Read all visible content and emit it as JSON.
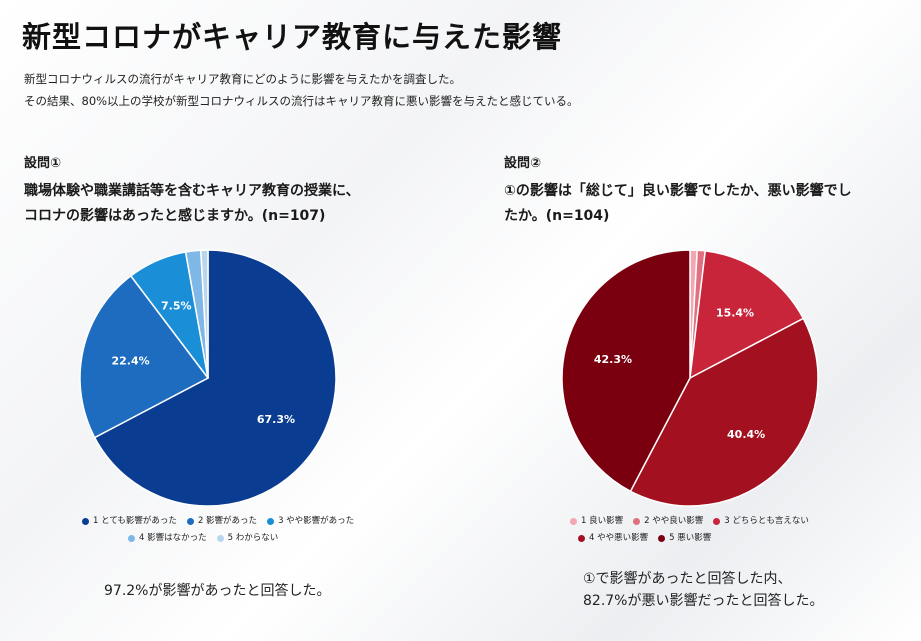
{
  "title": "新型コロナがキャリア教育に与えた影響",
  "intro": [
    "新型コロナウィルスの流行がキャリア教育にどのように影響を与えたかを調査した。",
    "その結果、80%以上の学校が新型コロナウィルスの流行はキャリア教育に悪い影響を与えたと感じている。"
  ],
  "q1": {
    "label": "設問①",
    "lines": [
      "職場体験や職業講話等を含むキャリア教育の授業に、",
      "コロナの影響はあったと感じますか。(n=107)"
    ],
    "summary": [
      "97.2%が影響があったと回答した。"
    ]
  },
  "q2": {
    "label": "設問②",
    "lines": [
      "①の影響は「総じて」良い影響でしたか、悪い影響でし",
      "たか。(n=104)"
    ],
    "summary": [
      "①で影響があったと回答した内、",
      "82.7%が悪い影響だったと回答した。"
    ]
  },
  "chart_data": [
    {
      "type": "pie",
      "title": "設問①",
      "categories": [
        "1 とても影響があった",
        "2 影響があった",
        "3 やや影響があった",
        "4 影響はなかった",
        "5 わからない"
      ],
      "values": [
        67.3,
        22.4,
        7.5,
        1.9,
        0.9
      ],
      "labels": [
        "67.3%",
        "22.4%",
        "7.5%",
        "",
        ""
      ],
      "colors": [
        "#0a3d91",
        "#1d6cc0",
        "#1a8fd8",
        "#7fb7e6",
        "#b9d6ef"
      ]
    },
    {
      "type": "pie",
      "title": "設問②",
      "categories": [
        "1 良い影響",
        "2 やや良い影響",
        "3 どちらとも言えない",
        "4 やや悪い影響",
        "5 悪い影響"
      ],
      "values": [
        0.9,
        1.0,
        15.4,
        40.4,
        42.3
      ],
      "labels": [
        "",
        "",
        "15.4%",
        "40.4%",
        "42.3%"
      ],
      "colors": [
        "#f2a7b3",
        "#e0707f",
        "#c8243a",
        "#a3101f",
        "#7a0010"
      ]
    }
  ]
}
